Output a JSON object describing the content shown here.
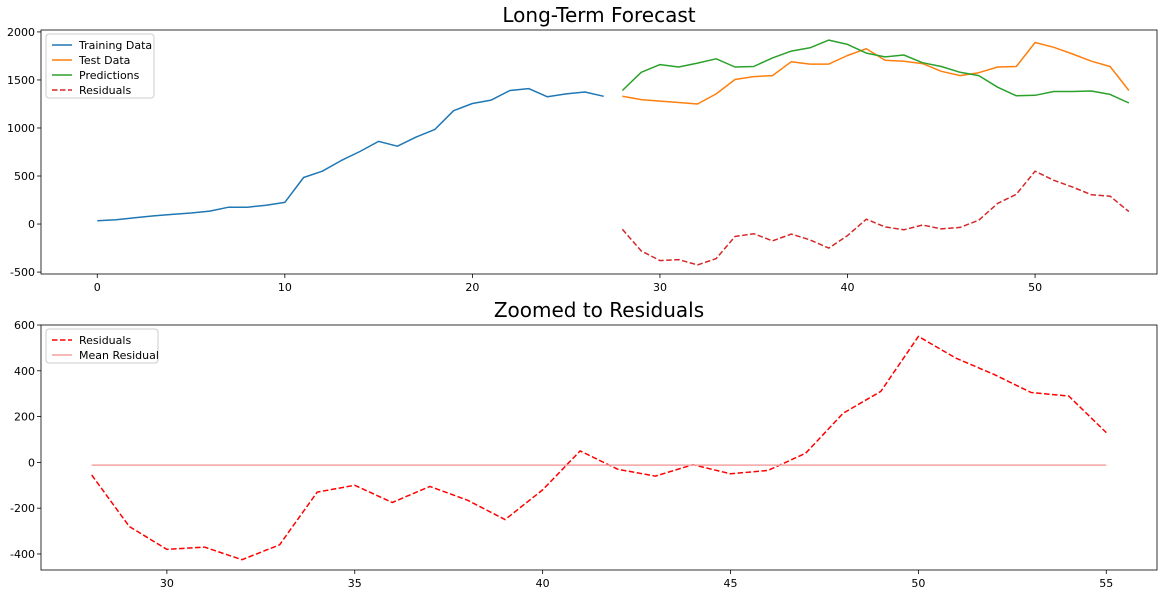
{
  "chart_data": [
    {
      "type": "line",
      "title": "Long-Term Forecast",
      "xlabel": "",
      "ylabel": "",
      "xlim": [
        -3,
        56.5
      ],
      "ylim": [
        -520,
        2020
      ],
      "xticks": [
        0,
        10,
        20,
        30,
        40,
        50
      ],
      "yticks": [
        -500,
        0,
        500,
        1000,
        1500,
        2000
      ],
      "grid": false,
      "legend": "top-left",
      "series": [
        {
          "name": "Training Data",
          "color": "#1f77b4",
          "dashed": false,
          "x": [
            0,
            1,
            2,
            3,
            4,
            5,
            6,
            7,
            8,
            9,
            10,
            11,
            12,
            13,
            14,
            15,
            16,
            17,
            18,
            19,
            20,
            21,
            22,
            23,
            24,
            25,
            26,
            27
          ],
          "y": [
            35,
            45,
            65,
            85,
            100,
            115,
            135,
            175,
            175,
            195,
            225,
            485,
            550,
            660,
            755,
            860,
            810,
            905,
            985,
            1180,
            1255,
            1290,
            1390,
            1410,
            1325,
            1355,
            1375,
            1330
          ]
        },
        {
          "name": "Test Data",
          "color": "#ff7f0e",
          "dashed": false,
          "x": [
            28,
            29,
            30,
            31,
            32,
            33,
            34,
            35,
            36,
            37,
            38,
            39,
            40,
            41,
            42,
            43,
            44,
            45,
            46,
            47,
            48,
            49,
            50,
            51,
            52,
            53,
            54,
            55
          ],
          "y": [
            1330,
            1295,
            1280,
            1265,
            1250,
            1355,
            1505,
            1535,
            1545,
            1690,
            1665,
            1665,
            1755,
            1825,
            1705,
            1695,
            1670,
            1590,
            1545,
            1575,
            1635,
            1640,
            1890,
            1840,
            1770,
            1695,
            1640,
            1390
          ]
        },
        {
          "name": "Predictions",
          "color": "#2ca02c",
          "dashed": false,
          "x": [
            28,
            29,
            30,
            31,
            32,
            33,
            34,
            35,
            36,
            37,
            38,
            39,
            40,
            41,
            42,
            43,
            44,
            45,
            46,
            47,
            48,
            49,
            50,
            51,
            52,
            53,
            54,
            55
          ],
          "y": [
            1390,
            1580,
            1660,
            1635,
            1675,
            1720,
            1635,
            1640,
            1730,
            1800,
            1835,
            1915,
            1870,
            1780,
            1740,
            1760,
            1680,
            1640,
            1580,
            1545,
            1425,
            1335,
            1340,
            1380,
            1380,
            1385,
            1350,
            1260
          ]
        },
        {
          "name": "Residuals",
          "color": "#d62728",
          "dashed": true,
          "x": [
            28,
            29,
            30,
            31,
            32,
            33,
            34,
            35,
            36,
            37,
            38,
            39,
            40,
            41,
            42,
            43,
            44,
            45,
            46,
            47,
            48,
            49,
            50,
            51,
            52,
            53,
            54,
            55
          ],
          "y": [
            -55,
            -280,
            -380,
            -370,
            -425,
            -360,
            -130,
            -100,
            -175,
            -105,
            -165,
            -250,
            -120,
            50,
            -30,
            -60,
            -10,
            -50,
            -35,
            40,
            215,
            310,
            550,
            455,
            385,
            305,
            290,
            130
          ]
        }
      ]
    },
    {
      "type": "line",
      "title": "Zoomed to Residuals",
      "xlabel": "",
      "ylabel": "",
      "xlim": [
        26.65,
        56.35
      ],
      "ylim": [
        -470,
        600
      ],
      "xticks": [
        30,
        35,
        40,
        45,
        50,
        55
      ],
      "yticks": [
        -400,
        -200,
        0,
        200,
        400,
        600
      ],
      "grid": false,
      "legend": "top-left",
      "series": [
        {
          "name": "Residuals",
          "color": "#ff0000",
          "dashed": true,
          "x": [
            28,
            29,
            30,
            31,
            32,
            33,
            34,
            35,
            36,
            37,
            38,
            39,
            40,
            41,
            42,
            43,
            44,
            45,
            46,
            47,
            48,
            49,
            50,
            51,
            52,
            53,
            54,
            55
          ],
          "y": [
            -55,
            -280,
            -380,
            -370,
            -425,
            -360,
            -130,
            -100,
            -175,
            -105,
            -165,
            -250,
            -120,
            50,
            -30,
            -60,
            -10,
            -50,
            -35,
            40,
            215,
            310,
            550,
            455,
            385,
            305,
            290,
            130
          ]
        },
        {
          "name": "Mean Residual",
          "color": "#f4a2a2",
          "dashed": false,
          "x": [
            28,
            55
          ],
          "y": [
            -12,
            -12
          ]
        }
      ]
    }
  ]
}
